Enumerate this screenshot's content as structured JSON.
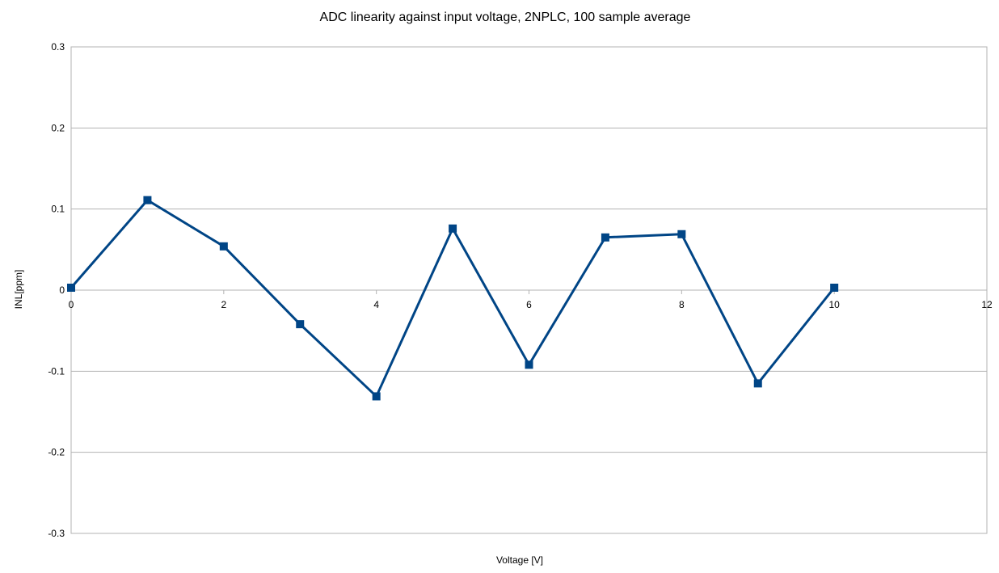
{
  "chart_data": {
    "type": "line",
    "title": "ADC linearity against input voltage, 2NPLC, 100 sample average",
    "xlabel": "Voltage [V]",
    "ylabel": "INL[ppm]",
    "xlim": [
      0,
      12
    ],
    "ylim": [
      -0.3,
      0.3
    ],
    "x_ticks": [
      0,
      2,
      4,
      6,
      8,
      10,
      12
    ],
    "x_tick_labels": [
      "0",
      "2",
      "4",
      "6",
      "8",
      "10",
      "12"
    ],
    "y_ticks": [
      0.3,
      0.2,
      0.1,
      0,
      -0.1,
      -0.2,
      -0.3
    ],
    "y_tick_labels": [
      "0.3",
      "0.2",
      "0.1",
      "0",
      "-0.1",
      "-0.2",
      "-0.3"
    ],
    "grid": "horizontal",
    "legend": "none",
    "series": [
      {
        "color": "#004586",
        "marker": "square",
        "x": [
          0,
          1,
          2,
          3,
          4,
          5,
          6,
          7,
          8,
          9,
          10
        ],
        "y": [
          0.003,
          0.111,
          0.054,
          -0.042,
          -0.131,
          0.076,
          -0.092,
          0.065,
          0.069,
          -0.115,
          0.003
        ]
      }
    ]
  }
}
